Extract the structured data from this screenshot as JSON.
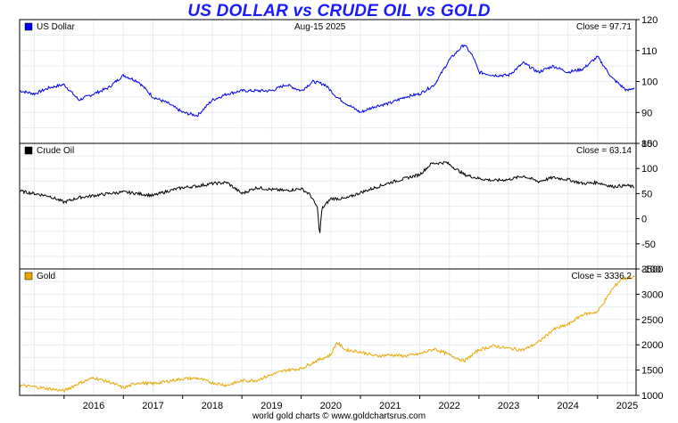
{
  "title": "US DOLLAR vs CRUDE OIL vs GOLD",
  "footer": "world gold charts © www.goldchartsrus.com",
  "chart_data": [
    {
      "type": "line",
      "series_name": "US Dollar",
      "date_label": "Aug-15  2025",
      "close_label": "Close = 97.71",
      "color": "#0000ee",
      "ylim": [
        80,
        120
      ],
      "yticks": [
        80,
        90,
        100,
        110,
        120
      ],
      "x": [
        2015.25,
        2015.5,
        2015.75,
        2016.0,
        2016.25,
        2016.5,
        2016.75,
        2017.0,
        2017.25,
        2017.5,
        2017.75,
        2018.0,
        2018.25,
        2018.5,
        2018.75,
        2019.0,
        2019.25,
        2019.5,
        2019.75,
        2020.0,
        2020.2,
        2020.4,
        2020.6,
        2020.75,
        2021.0,
        2021.25,
        2021.5,
        2021.75,
        2022.0,
        2022.25,
        2022.5,
        2022.75,
        2022.9,
        2023.0,
        2023.25,
        2023.5,
        2023.75,
        2024.0,
        2024.25,
        2024.5,
        2024.75,
        2025.0,
        2025.25,
        2025.5,
        2025.62
      ],
      "values": [
        97,
        96,
        98,
        99,
        94,
        96,
        98,
        102,
        100,
        95,
        93,
        90,
        89,
        94,
        96,
        97,
        97,
        97,
        99,
        97,
        100,
        99,
        95,
        93,
        90,
        92,
        93,
        95,
        96,
        99,
        107,
        112,
        108,
        103,
        102,
        102,
        106,
        103,
        105,
        103,
        104,
        108,
        101,
        97,
        98
      ]
    },
    {
      "type": "line",
      "series_name": "Crude Oil",
      "close_label": "Close = 63.14",
      "color": "#000000",
      "ylim": [
        -100,
        150
      ],
      "yticks": [
        -100,
        -50,
        0,
        50,
        100,
        150
      ],
      "x": [
        2015.25,
        2015.5,
        2015.75,
        2016.0,
        2016.25,
        2016.5,
        2016.75,
        2017.0,
        2017.25,
        2017.5,
        2017.75,
        2018.0,
        2018.25,
        2018.5,
        2018.75,
        2019.0,
        2019.25,
        2019.5,
        2019.75,
        2020.0,
        2020.15,
        2020.28,
        2020.31,
        2020.35,
        2020.5,
        2020.75,
        2021.0,
        2021.25,
        2021.5,
        2021.75,
        2022.0,
        2022.2,
        2022.45,
        2022.75,
        2023.0,
        2023.25,
        2023.5,
        2023.75,
        2024.0,
        2024.25,
        2024.5,
        2024.75,
        2025.0,
        2025.25,
        2025.5,
        2025.62
      ],
      "values": [
        55,
        50,
        45,
        33,
        42,
        46,
        50,
        53,
        50,
        46,
        55,
        62,
        65,
        70,
        72,
        50,
        62,
        58,
        56,
        60,
        48,
        20,
        -37,
        20,
        40,
        40,
        52,
        62,
        72,
        80,
        88,
        110,
        112,
        88,
        80,
        76,
        78,
        85,
        74,
        82,
        78,
        70,
        72,
        64,
        66,
        63
      ]
    },
    {
      "type": "line",
      "series_name": "Gold",
      "close_label": "Close = 3336.2",
      "color": "#e8a800",
      "ylim": [
        1000,
        3500
      ],
      "yticks": [
        1000,
        1500,
        2000,
        2500,
        3000,
        3500
      ],
      "x": [
        2015.25,
        2015.5,
        2015.75,
        2016.0,
        2016.25,
        2016.5,
        2016.75,
        2017.0,
        2017.25,
        2017.5,
        2017.75,
        2018.0,
        2018.25,
        2018.5,
        2018.75,
        2019.0,
        2019.25,
        2019.5,
        2019.75,
        2020.0,
        2020.25,
        2020.5,
        2020.6,
        2020.75,
        2021.0,
        2021.25,
        2021.5,
        2021.75,
        2022.0,
        2022.25,
        2022.5,
        2022.75,
        2023.0,
        2023.25,
        2023.5,
        2023.75,
        2024.0,
        2024.25,
        2024.5,
        2024.75,
        2025.0,
        2025.25,
        2025.4,
        2025.62
      ],
      "values": [
        1200,
        1170,
        1130,
        1090,
        1240,
        1350,
        1270,
        1150,
        1250,
        1230,
        1280,
        1330,
        1340,
        1250,
        1200,
        1290,
        1300,
        1410,
        1500,
        1530,
        1680,
        1800,
        2050,
        1900,
        1860,
        1780,
        1800,
        1780,
        1820,
        1920,
        1800,
        1680,
        1900,
        1980,
        1930,
        1900,
        2050,
        2300,
        2400,
        2600,
        2650,
        3100,
        3300,
        3336
      ]
    }
  ],
  "x_axis": {
    "ticks": [
      "2016",
      "2017",
      "2018",
      "2019",
      "2020",
      "2021",
      "2022",
      "2023",
      "2024",
      "2025"
    ],
    "range": [
      2015.25,
      2025.65
    ]
  }
}
